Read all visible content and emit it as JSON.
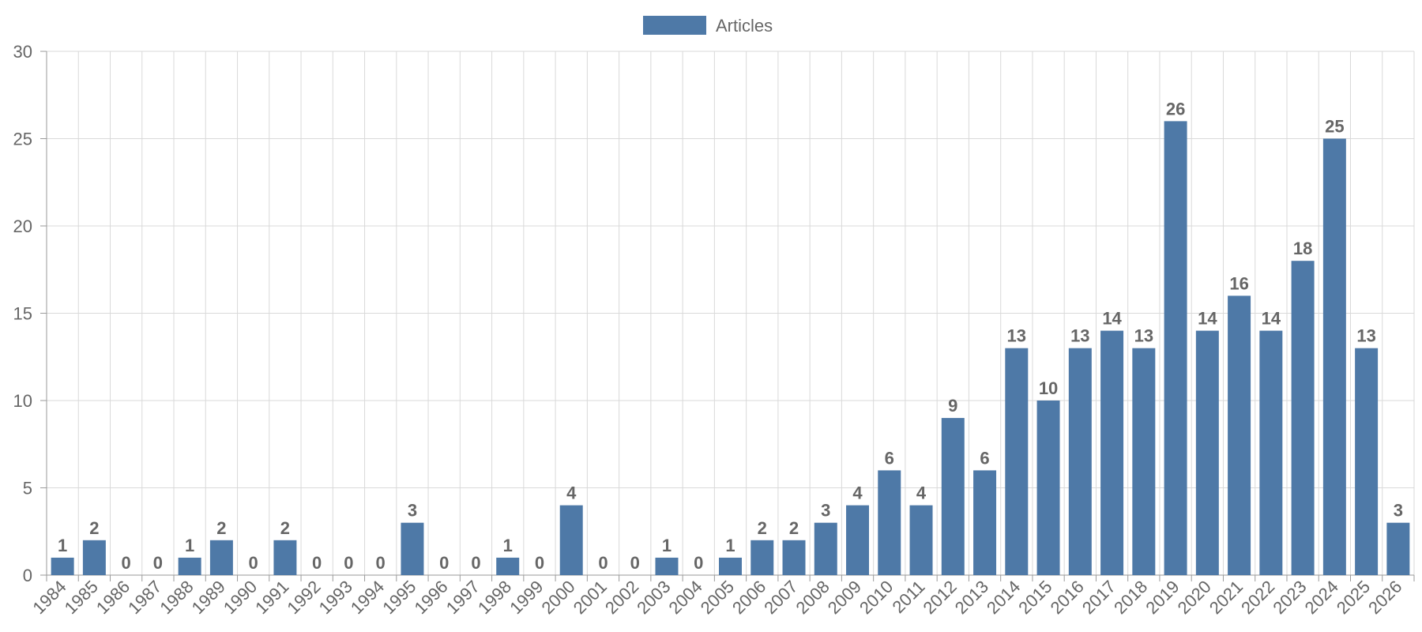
{
  "chart_data": {
    "type": "bar",
    "legend": {
      "placement": "top-center",
      "entries": [
        "Articles"
      ]
    },
    "categories": [
      "1984",
      "1985",
      "1986",
      "1987",
      "1988",
      "1989",
      "1990",
      "1991",
      "1992",
      "1993",
      "1994",
      "1995",
      "1996",
      "1997",
      "1998",
      "1999",
      "2000",
      "2001",
      "2002",
      "2003",
      "2004",
      "2005",
      "2006",
      "2007",
      "2008",
      "2009",
      "2010",
      "2011",
      "2012",
      "2013",
      "2014",
      "2015",
      "2016",
      "2017",
      "2018",
      "2019",
      "2020",
      "2021",
      "2022",
      "2023",
      "2024",
      "2025",
      "2026"
    ],
    "series": [
      {
        "name": "Articles",
        "color": "#4e79a7",
        "values": [
          1,
          2,
          0,
          0,
          1,
          2,
          0,
          2,
          0,
          0,
          0,
          3,
          0,
          0,
          1,
          0,
          4,
          0,
          0,
          1,
          0,
          1,
          2,
          2,
          3,
          4,
          6,
          4,
          9,
          6,
          13,
          10,
          13,
          14,
          13,
          26,
          14,
          16,
          14,
          18,
          25,
          13,
          3
        ]
      }
    ],
    "ylim": [
      0,
      30
    ],
    "yticks": [
      0,
      5,
      10,
      15,
      20,
      25,
      30
    ],
    "grid": true,
    "show_data_labels": true
  }
}
